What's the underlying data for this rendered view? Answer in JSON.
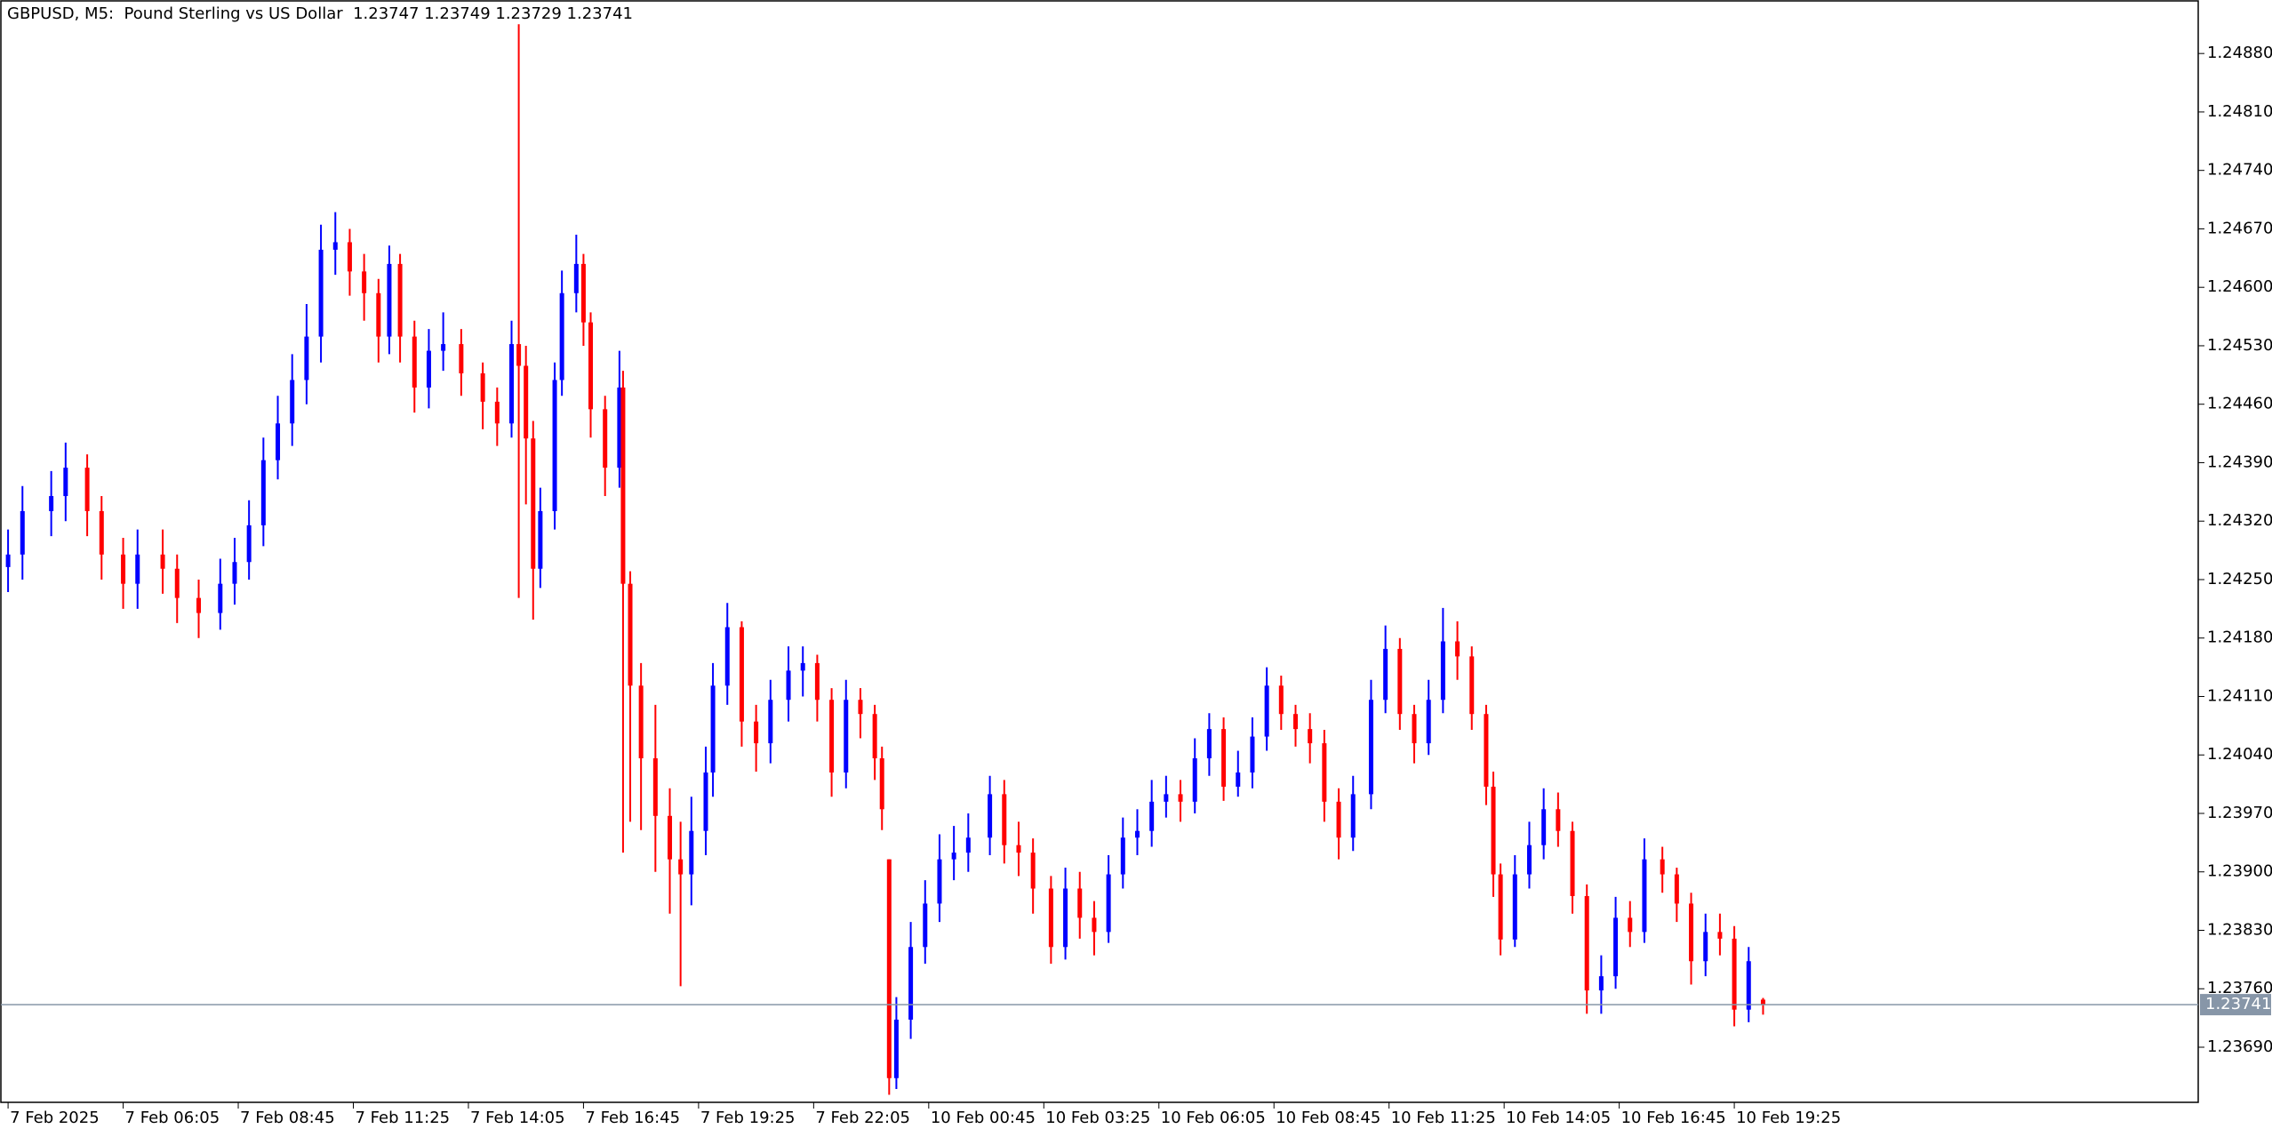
{
  "chart_data": {
    "type": "candlestick",
    "title": "GBPUSD, M5:  Pound Sterling vs US Dollar  1.23747 1.23749 1.23729 1.23741",
    "up_color": "#0000ff",
    "down_color": "#ff0000",
    "x": [
      0,
      4,
      12,
      16,
      22,
      26,
      32,
      36,
      43,
      47,
      53,
      59,
      63,
      67,
      71,
      75,
      79,
      83,
      87,
      91,
      95,
      99,
      103,
      106,
      109,
      113,
      117,
      121,
      126,
      132,
      136,
      140,
      142,
      144,
      146,
      148,
      152,
      154,
      158,
      160,
      162,
      166,
      170,
      171,
      173,
      176,
      180,
      184,
      187,
      190,
      194,
      196,
      200,
      204,
      208,
      212,
      217,
      221,
      225,
      229,
      233,
      237,
      241,
      243,
      245,
      247,
      251,
      255,
      259,
      263,
      267,
      273,
      277,
      281,
      285,
      290,
      294,
      298,
      302,
      306,
      310,
      314,
      318,
      322,
      326,
      330,
      334,
      338,
      342,
      346,
      350,
      354,
      358,
      362,
      366,
      370,
      374,
      379,
      383,
      387,
      391,
      395,
      399,
      403,
      407,
      411,
      413,
      415,
      419,
      423,
      427,
      431,
      435,
      439,
      443,
      447,
      451,
      455,
      460,
      464,
      468,
      472,
      476,
      480,
      484,
      488
    ],
    "open": [
      1.24265,
      1.2428,
      1.24332,
      1.2435,
      1.24384,
      1.24332,
      1.2428,
      1.24245,
      1.2428,
      1.24263,
      1.24228,
      1.2421,
      1.24245,
      1.24271,
      1.24315,
      1.24393,
      1.24437,
      1.24489,
      1.24541,
      1.24645,
      1.24654,
      1.24619,
      1.24593,
      1.24541,
      1.24628,
      1.24541,
      1.2448,
      1.24524,
      1.24532,
      1.24497,
      1.24463,
      1.24437,
      1.24532,
      1.24506,
      1.24419,
      1.24263,
      1.24332,
      1.24489,
      1.24593,
      1.24628,
      1.24558,
      1.24454,
      1.24384,
      1.2448,
      1.24245,
      1.24123,
      1.24036,
      1.23967,
      1.23915,
      1.23897,
      1.23949,
      1.24019,
      1.24123,
      1.24193,
      1.2408,
      1.24054,
      1.24106,
      1.24141,
      1.2415,
      1.24106,
      1.24019,
      1.24106,
      1.24089,
      1.24036,
      1.23915,
      1.23653,
      1.23723,
      1.2381,
      1.23862,
      1.23915,
      1.23923,
      1.23941,
      1.23993,
      1.23932,
      1.23923,
      1.2388,
      1.2381,
      1.2388,
      1.23845,
      1.23828,
      1.23897,
      1.23941,
      1.23949,
      1.23984,
      1.23993,
      1.23984,
      1.24036,
      1.24071,
      1.24002,
      1.24019,
      1.24062,
      1.24123,
      1.24089,
      1.24071,
      1.24054,
      1.23984,
      1.23941,
      1.23993,
      1.24106,
      1.24167,
      1.24089,
      1.24054,
      1.24106,
      1.24176,
      1.24158,
      1.24089,
      1.24002,
      1.23897,
      1.23819,
      1.23897,
      1.23932,
      1.23975,
      1.23949,
      1.23871,
      1.23758,
      1.23775,
      1.23845,
      1.23828,
      1.23915,
      1.23897,
      1.23862,
      1.23793,
      1.23828,
      1.2382,
      1.23735,
      1.23747
    ],
    "high": [
      1.2431,
      1.24362,
      1.2438,
      1.24414,
      1.244,
      1.2435,
      1.243,
      1.2431,
      1.2431,
      1.2428,
      1.2425,
      1.24275,
      1.243,
      1.24345,
      1.2442,
      1.2447,
      1.2452,
      1.2458,
      1.24675,
      1.2469,
      1.2467,
      1.2464,
      1.2461,
      1.2465,
      1.2464,
      1.2456,
      1.2455,
      1.2457,
      1.2455,
      1.2451,
      1.2448,
      1.2456,
      1.24915,
      1.2453,
      1.2444,
      1.2436,
      1.2451,
      1.2462,
      1.24663,
      1.2464,
      1.2457,
      1.2447,
      1.24524,
      1.245,
      1.2426,
      1.2415,
      1.241,
      1.24,
      1.2396,
      1.2399,
      1.2405,
      1.2415,
      1.24222,
      1.242,
      1.241,
      1.2413,
      1.2417,
      1.2417,
      1.2416,
      1.2412,
      1.2413,
      1.2412,
      1.241,
      1.2405,
      1.23915,
      1.2375,
      1.2384,
      1.2389,
      1.23945,
      1.23955,
      1.2397,
      1.24015,
      1.2401,
      1.2396,
      1.2394,
      1.23895,
      1.23905,
      1.239,
      1.23865,
      1.2392,
      1.23965,
      1.23975,
      1.2401,
      1.24015,
      1.2401,
      1.2406,
      1.2409,
      1.24085,
      1.24045,
      1.24085,
      1.24145,
      1.24135,
      1.241,
      1.2409,
      1.2407,
      1.24,
      1.24015,
      1.2413,
      1.24195,
      1.2418,
      1.241,
      1.2413,
      1.24216,
      1.242,
      1.2417,
      1.241,
      1.2402,
      1.2391,
      1.2392,
      1.2396,
      1.24,
      1.23995,
      1.2396,
      1.23885,
      1.238,
      1.2387,
      1.23865,
      1.2394,
      1.2393,
      1.23905,
      1.23875,
      1.2385,
      1.2385,
      1.23835,
      1.2381,
      1.23749
    ],
    "low": [
      1.24235,
      1.2425,
      1.24302,
      1.2432,
      1.24302,
      1.2425,
      1.24215,
      1.24215,
      1.24233,
      1.24198,
      1.2418,
      1.2419,
      1.2422,
      1.2425,
      1.2429,
      1.2437,
      1.2441,
      1.2446,
      1.2451,
      1.24615,
      1.2459,
      1.2456,
      1.2451,
      1.2452,
      1.2451,
      1.2445,
      1.24455,
      1.245,
      1.2447,
      1.2443,
      1.2441,
      1.2442,
      1.24228,
      1.2434,
      1.24202,
      1.2424,
      1.2431,
      1.2447,
      1.2457,
      1.2453,
      1.2442,
      1.2435,
      1.2436,
      1.23923,
      1.2396,
      1.2395,
      1.239,
      1.2385,
      1.23763,
      1.2386,
      1.2392,
      1.2399,
      1.241,
      1.2405,
      1.2402,
      1.2403,
      1.2408,
      1.2411,
      1.2408,
      1.2399,
      1.24,
      1.2406,
      1.2401,
      1.2395,
      1.23633,
      1.2364,
      1.237,
      1.2379,
      1.2384,
      1.2389,
      1.239,
      1.2392,
      1.2391,
      1.23895,
      1.2385,
      1.2379,
      1.23795,
      1.2382,
      1.238,
      1.23815,
      1.2388,
      1.2392,
      1.2393,
      1.23965,
      1.2396,
      1.2397,
      1.24015,
      1.23985,
      1.2399,
      1.24,
      1.24045,
      1.2407,
      1.2405,
      1.2403,
      1.2396,
      1.23915,
      1.23925,
      1.23975,
      1.2409,
      1.2407,
      1.2403,
      1.2404,
      1.2409,
      1.2413,
      1.2407,
      1.2398,
      1.2387,
      1.238,
      1.2381,
      1.2388,
      1.23915,
      1.2393,
      1.2385,
      1.2373,
      1.2373,
      1.2376,
      1.2381,
      1.23815,
      1.23875,
      1.2384,
      1.23765,
      1.23775,
      1.238,
      1.23715,
      1.2372,
      1.23729
    ],
    "close": [
      1.2428,
      1.24332,
      1.2435,
      1.24384,
      1.24332,
      1.2428,
      1.24245,
      1.2428,
      1.24263,
      1.24228,
      1.2421,
      1.24245,
      1.24271,
      1.24315,
      1.24393,
      1.24437,
      1.24489,
      1.24541,
      1.24645,
      1.24654,
      1.24619,
      1.24593,
      1.24541,
      1.24628,
      1.24541,
      1.2448,
      1.24524,
      1.24532,
      1.24497,
      1.24463,
      1.24437,
      1.24532,
      1.24506,
      1.24419,
      1.24263,
      1.24332,
      1.24489,
      1.24593,
      1.24628,
      1.24558,
      1.24454,
      1.24384,
      1.2448,
      1.24245,
      1.24123,
      1.24036,
      1.23967,
      1.23915,
      1.23897,
      1.23949,
      1.24019,
      1.24123,
      1.24193,
      1.2408,
      1.24054,
      1.24106,
      1.24141,
      1.2415,
      1.24106,
      1.24019,
      1.24106,
      1.24089,
      1.24036,
      1.23975,
      1.23653,
      1.23723,
      1.2381,
      1.23862,
      1.23915,
      1.23923,
      1.23941,
      1.23993,
      1.23932,
      1.23923,
      1.2388,
      1.2381,
      1.2388,
      1.23845,
      1.23828,
      1.23897,
      1.23941,
      1.23949,
      1.23984,
      1.23993,
      1.23984,
      1.24036,
      1.24071,
      1.24002,
      1.24019,
      1.24062,
      1.24123,
      1.24089,
      1.24071,
      1.24054,
      1.23984,
      1.23941,
      1.23993,
      1.24106,
      1.24167,
      1.24089,
      1.24054,
      1.24106,
      1.24176,
      1.24158,
      1.24089,
      1.24002,
      1.23897,
      1.23819,
      1.23897,
      1.23932,
      1.23975,
      1.23949,
      1.23871,
      1.23758,
      1.23775,
      1.23845,
      1.23828,
      1.23915,
      1.23897,
      1.23862,
      1.23793,
      1.23828,
      1.2382,
      1.23735,
      1.23793,
      1.23741
    ],
    "last_price": 1.23741,
    "last_price_color": "#8796a8",
    "xlim": [
      -2,
      609
    ],
    "xticks": [
      {
        "value": 0,
        "label": "7 Feb 2025"
      },
      {
        "value": 32,
        "label": "7 Feb 06:05"
      },
      {
        "value": 64,
        "label": "7 Feb 08:45"
      },
      {
        "value": 96,
        "label": "7 Feb 11:25"
      },
      {
        "value": 128,
        "label": "7 Feb 14:05"
      },
      {
        "value": 160,
        "label": "7 Feb 16:45"
      },
      {
        "value": 192,
        "label": "7 Feb 19:25"
      },
      {
        "value": 224,
        "label": "7 Feb 22:05"
      },
      {
        "value": 256,
        "label": "10 Feb 00:45"
      },
      {
        "value": 288,
        "label": "10 Feb 03:25"
      },
      {
        "value": 320,
        "label": "10 Feb 06:05"
      },
      {
        "value": 352,
        "label": "10 Feb 08:45"
      },
      {
        "value": 384,
        "label": "10 Feb 11:25"
      },
      {
        "value": 416,
        "label": "10 Feb 14:05"
      },
      {
        "value": 448,
        "label": "10 Feb 16:45"
      },
      {
        "value": 480,
        "label": "10 Feb 19:25"
      }
    ],
    "ylim": [
      1.23624,
      1.24943
    ],
    "yticks": [
      {
        "value": 1.2369,
        "label": "1.23690"
      },
      {
        "value": 1.2376,
        "label": "1.23760"
      },
      {
        "value": 1.2383,
        "label": "1.23830"
      },
      {
        "value": 1.239,
        "label": "1.23900"
      },
      {
        "value": 1.2397,
        "label": "1.23970"
      },
      {
        "value": 1.2404,
        "label": "1.24040"
      },
      {
        "value": 1.2411,
        "label": "1.24110"
      },
      {
        "value": 1.2418,
        "label": "1.24180"
      },
      {
        "value": 1.2425,
        "label": "1.24250"
      },
      {
        "value": 1.2432,
        "label": "1.24320"
      },
      {
        "value": 1.2439,
        "label": "1.24390"
      },
      {
        "value": 1.2446,
        "label": "1.24460"
      },
      {
        "value": 1.2453,
        "label": "1.24530"
      },
      {
        "value": 1.246,
        "label": "1.24600"
      },
      {
        "value": 1.2467,
        "label": "1.24670"
      },
      {
        "value": 1.2474,
        "label": "1.24740"
      },
      {
        "value": 1.2481,
        "label": "1.24810"
      },
      {
        "value": 1.2488,
        "label": "1.24880"
      }
    ],
    "grid": false
  }
}
